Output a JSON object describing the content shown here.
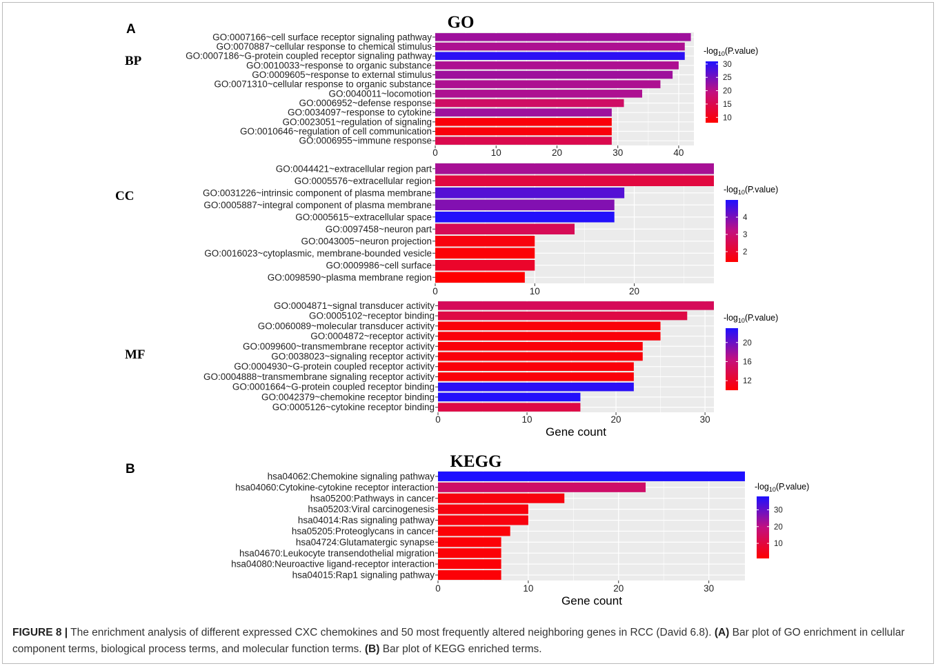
{
  "figure": {
    "label_a": "A",
    "label_b": "B",
    "go_title": "GO",
    "kegg_title": "KEGG",
    "xlabel": "Gene count",
    "legend_title_prefix": "-log",
    "legend_title_sub": "10",
    "legend_title_suffix": "(P.value)"
  },
  "caption": {
    "label": "FIGURE 8 |",
    "text1": " The enrichment analysis of different expressed CXC chemokines and 50 most frequently altered neighboring genes in RCC (David 6.8). ",
    "ref_a": "(A)",
    "text2": " Bar plot of GO enrichment in cellular component terms, biological process terms, and molecular function terms. ",
    "ref_b": "(B)",
    "text3": " Bar plot of KEGG enriched terms."
  },
  "colors": {
    "low": "#ff0000",
    "mid": "#c21080",
    "high": "#1e10ff",
    "panel_bg": "#ebebeb",
    "grid": "#ffffff"
  },
  "chart_data": [
    {
      "type": "bar",
      "orientation": "horizontal",
      "section": "BP",
      "categories": [
        "GO:0007166~cell surface receptor signaling pathway",
        "GO:0070887~cellular response to chemical stimulus",
        "GO:0007186~G-protein coupled receptor signaling pathway",
        "GO:0010033~response to organic substance",
        "GO:0009605~response to external stimulus",
        "GO:0071310~cellular response to organic substance",
        "GO:0040011~locomotion",
        "GO:0006952~defense response",
        "GO:0034097~response to cytokine",
        "GO:0023051~regulation of signaling",
        "GO:0010646~regulation of cell communication",
        "GO:0006955~immune response"
      ],
      "values": [
        42,
        41,
        41,
        40,
        39,
        37,
        34,
        31,
        29,
        29,
        29,
        29
      ],
      "color_values": [
        22,
        21,
        30,
        21,
        22,
        21,
        21,
        17,
        22,
        9,
        9,
        15
      ],
      "xlim": [
        0,
        42.5
      ],
      "xticks": [
        0,
        10,
        20,
        30,
        40
      ],
      "legend_ticks": [
        30,
        25,
        20,
        15,
        10
      ],
      "legend_range": [
        8,
        31
      ]
    },
    {
      "type": "bar",
      "orientation": "horizontal",
      "section": "CC",
      "categories": [
        "GO:0044421~extracellular region part",
        "GO:0005576~extracellular region",
        "GO:0031226~intrinsic component of plasma membrane",
        "GO:0005887~integral component of plasma membrane",
        "GO:0005615~extracellular space",
        "GO:0097458~neuron part",
        "GO:0043005~neuron projection",
        "GO:0016023~cytoplasmic, membrane-bounded vesicle",
        "GO:0009986~cell surface",
        "GO:0098590~plasma membrane region"
      ],
      "values": [
        28,
        28,
        19,
        18,
        18,
        14,
        10,
        10,
        10,
        9
      ],
      "color_values": [
        3.5,
        2.3,
        4.4,
        3.9,
        4.95,
        2.6,
        1.6,
        1.5,
        2.0,
        1.4
      ],
      "xlim": [
        0,
        28
      ],
      "xticks": [
        0,
        10,
        20
      ],
      "legend_ticks": [
        4,
        3,
        2
      ],
      "legend_range": [
        1.4,
        5.0
      ]
    },
    {
      "type": "bar",
      "orientation": "horizontal",
      "section": "MF",
      "categories": [
        "GO:0004871~signal transducer activity",
        "GO:0005102~receptor binding",
        "GO:0060089~molecular transducer activity",
        "GO:0004872~receptor activity",
        "GO:0099600~transmembrane receptor activity",
        "GO:0038023~signaling receptor activity",
        "GO:0004930~G-protein coupled receptor activity",
        "GO:0004888~transmembrane signaling receptor activity",
        "GO:0001664~G-protein coupled receptor binding",
        "GO:0042379~chemokine receptor binding",
        "GO:0005126~cytokine receptor binding"
      ],
      "values": [
        31,
        28,
        25,
        25,
        23,
        23,
        22,
        22,
        22,
        16,
        16
      ],
      "color_values": [
        14.5,
        13.5,
        10.5,
        10.5,
        10.5,
        10.5,
        10.5,
        10.5,
        22.5,
        22.8,
        13.5
      ],
      "xlim": [
        0,
        31
      ],
      "xticks": [
        0,
        10,
        20,
        30
      ],
      "legend_ticks": [
        20,
        16,
        12
      ],
      "legend_range": [
        10,
        23
      ]
    },
    {
      "type": "bar",
      "orientation": "horizontal",
      "section": "KEGG",
      "categories": [
        "hsa04062:Chemokine signaling pathway",
        "hsa04060:Cytokine-cytokine receptor interaction",
        "hsa05200:Pathways in cancer",
        "hsa05203:Viral carcinogenesis",
        "hsa04014:Ras signaling pathway",
        "hsa05205:Proteoglycans in cancer",
        "hsa04724:Glutamatergic synapse",
        "hsa04670:Leukocyte transendothelial migration",
        "hsa04080:Neuroactive ligand-receptor interaction",
        "hsa04015:Rap1 signaling pathway"
      ],
      "values": [
        34,
        23,
        14,
        10,
        10,
        8,
        7,
        7,
        7,
        7
      ],
      "color_values": [
        38,
        16,
        3,
        3,
        3,
        2,
        2,
        2,
        2,
        2
      ],
      "xlim": [
        0,
        34
      ],
      "xticks": [
        0,
        10,
        20,
        30
      ],
      "legend_ticks": [
        30,
        20,
        10
      ],
      "legend_range": [
        1,
        38
      ]
    }
  ]
}
